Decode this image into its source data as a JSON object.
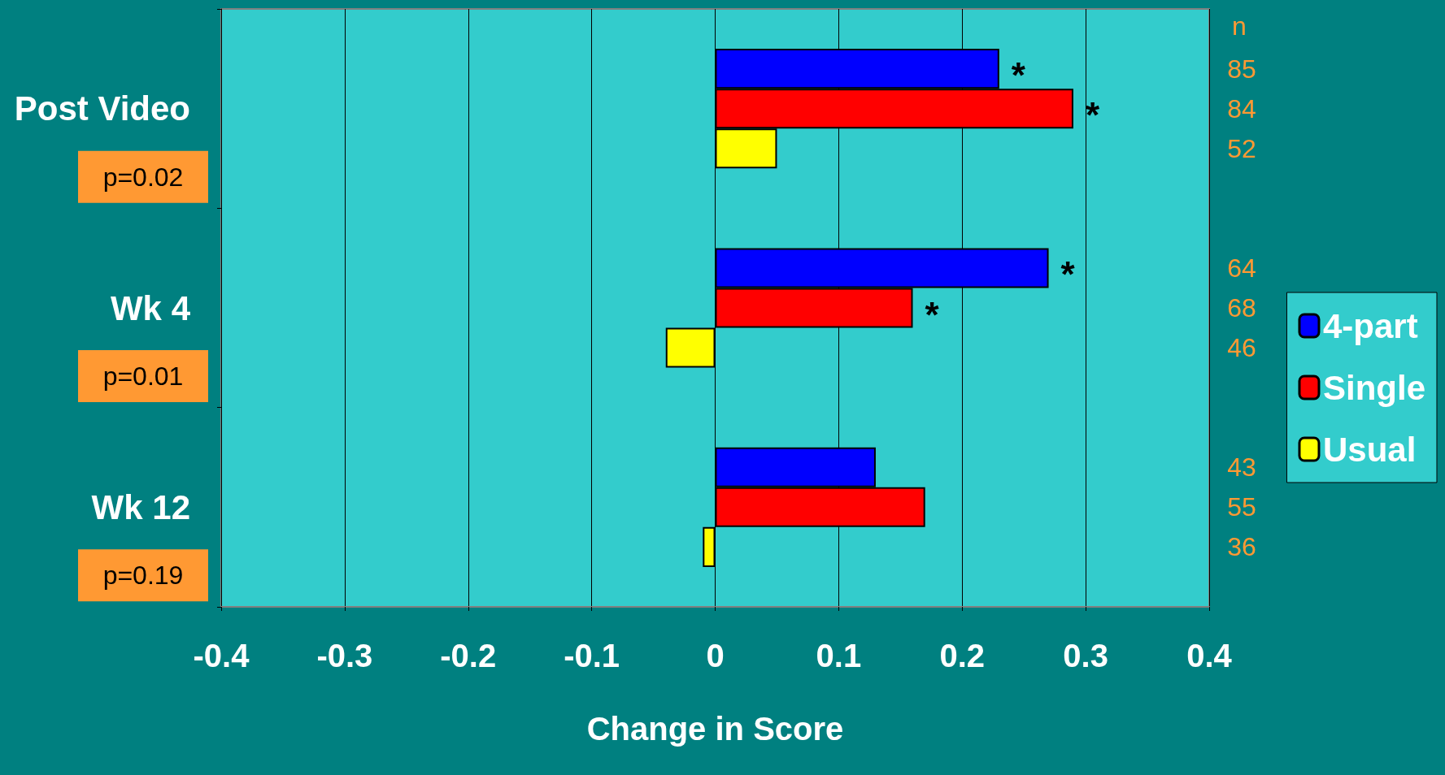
{
  "chart_data": {
    "type": "bar",
    "orientation": "horizontal",
    "xlabel": "Change in Score",
    "categories": [
      "Post Video",
      "Wk 4",
      "Wk 12"
    ],
    "series": [
      {
        "name": "4-part",
        "color": "#0000ff",
        "values": [
          0.23,
          0.27,
          0.13
        ],
        "value_labels": [
          "*",
          "*",
          null
        ]
      },
      {
        "name": "Single",
        "color": "#ff0000",
        "values": [
          0.29,
          0.16,
          0.17
        ],
        "value_labels": [
          "*",
          "*",
          null
        ]
      },
      {
        "name": "Usual",
        "color": "#ffff00",
        "values": [
          0.05,
          -0.04,
          -0.01
        ]
      }
    ],
    "xlim": [
      -0.4,
      0.4
    ],
    "xticks": [
      -0.4,
      -0.3,
      -0.2,
      -0.1,
      0,
      0.1,
      0.2,
      0.3,
      0.4
    ],
    "grid": "x",
    "legend": "right",
    "annotations": [
      "n",
      "85",
      "84",
      "52",
      "64",
      "68",
      "46",
      "43",
      "55",
      "36",
      "p=0.02",
      "p=0.01",
      "p=0.19"
    ]
  }
}
